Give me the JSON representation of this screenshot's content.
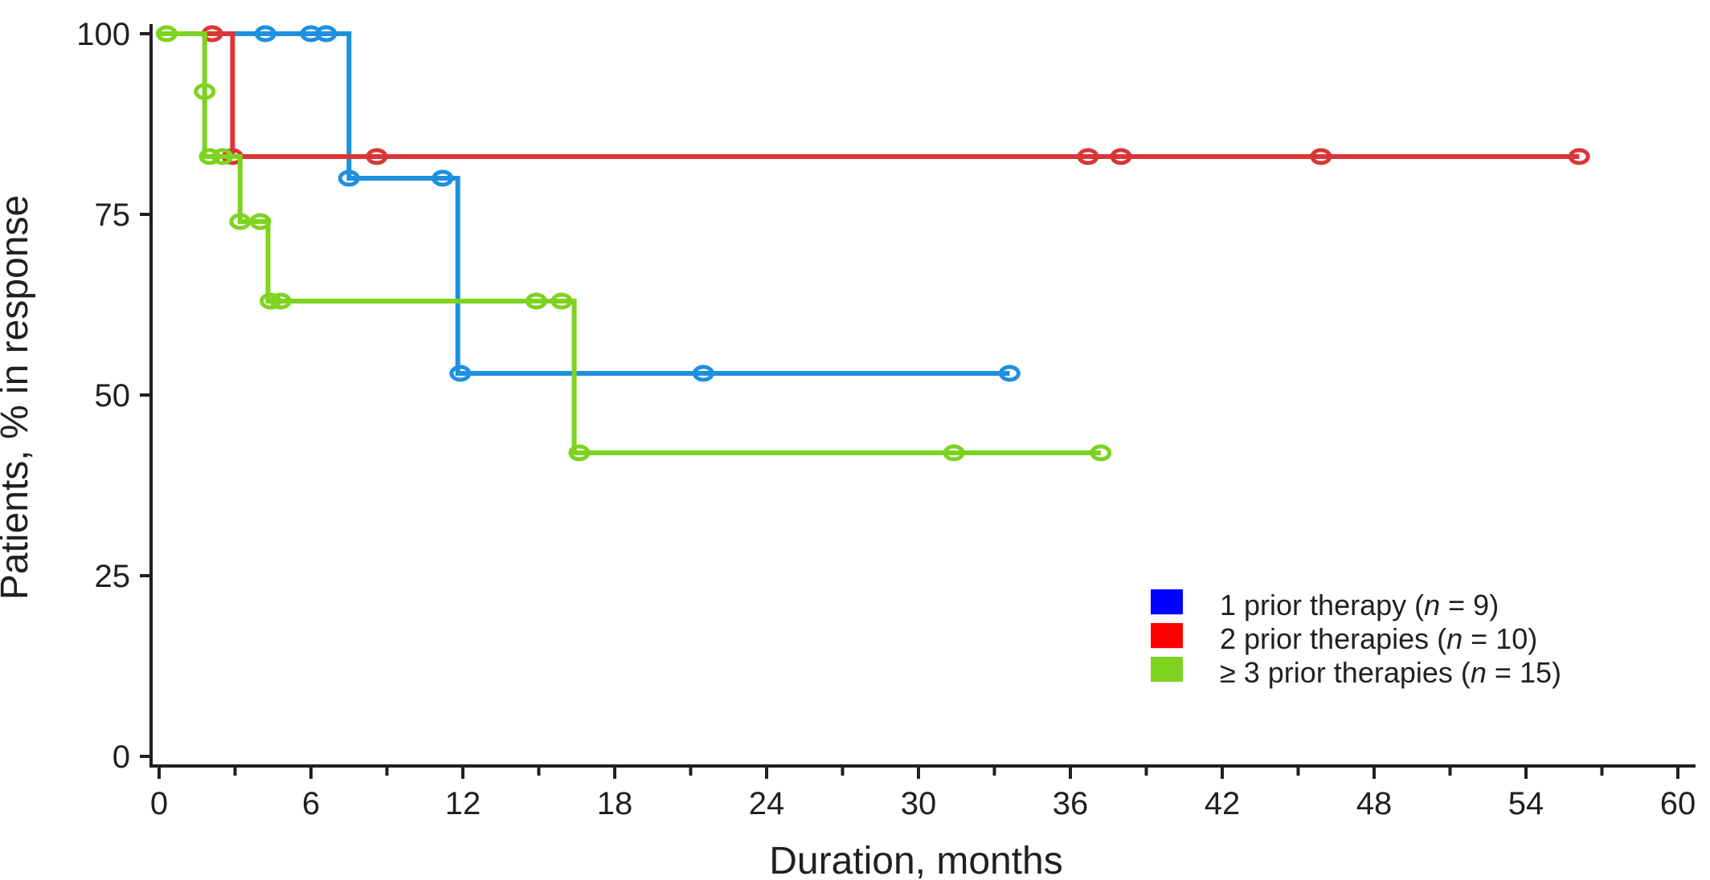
{
  "chart_data": {
    "type": "line",
    "subtype": "kaplan-meier step curves with censor markers",
    "title": "",
    "xlabel": "Duration, months",
    "ylabel": "Patients, % in response",
    "xlim": [
      0,
      60
    ],
    "ylim": [
      0,
      100
    ],
    "xticks": [
      0,
      6,
      12,
      18,
      24,
      30,
      36,
      42,
      48,
      54,
      60
    ],
    "xticks_minor": [
      3,
      9,
      15,
      21,
      27,
      33,
      39,
      45,
      51,
      57
    ],
    "yticks": [
      0,
      25,
      50,
      75,
      100
    ],
    "grid": false,
    "legend_position": "lower-right",
    "series": [
      {
        "label_main": "1 prior therapy (",
        "label_n": "n",
        "label_rest": " = 9)",
        "color": "#1e90e0",
        "legend_color": "#0000ff",
        "steps": [
          [
            0,
            100
          ],
          [
            7.5,
            100
          ],
          [
            7.5,
            80
          ],
          [
            11.8,
            80
          ],
          [
            11.8,
            53
          ],
          [
            33.6,
            53
          ]
        ],
        "censors": [
          [
            4.2,
            100
          ],
          [
            6.0,
            100
          ],
          [
            6.6,
            100
          ],
          [
            7.5,
            80
          ],
          [
            11.2,
            80
          ],
          [
            11.9,
            53
          ],
          [
            21.5,
            53
          ],
          [
            33.6,
            53
          ]
        ]
      },
      {
        "label_main": "2 prior therapies (",
        "label_n": "n",
        "label_rest": " = 10)",
        "color": "#d93636",
        "legend_color": "#ff0000",
        "steps": [
          [
            0,
            100
          ],
          [
            2.9,
            100
          ],
          [
            2.9,
            83
          ],
          [
            56.1,
            83
          ]
        ],
        "censors": [
          [
            2.1,
            100
          ],
          [
            2.9,
            83
          ],
          [
            8.6,
            83
          ],
          [
            36.7,
            83
          ],
          [
            38.0,
            83
          ],
          [
            45.9,
            83
          ],
          [
            56.1,
            83
          ]
        ]
      },
      {
        "label_main": "≥ 3 prior therapies (",
        "label_n": "n",
        "label_rest": " = 15)",
        "color": "#7ed321",
        "legend_color": "#7ed321",
        "steps": [
          [
            0,
            100
          ],
          [
            1.8,
            100
          ],
          [
            1.8,
            83
          ],
          [
            3.2,
            83
          ],
          [
            3.2,
            74
          ],
          [
            4.3,
            74
          ],
          [
            4.3,
            63
          ],
          [
            16.4,
            63
          ],
          [
            16.4,
            42
          ],
          [
            37.2,
            42
          ]
        ],
        "censors": [
          [
            0.3,
            100
          ],
          [
            1.8,
            92
          ],
          [
            2.0,
            83
          ],
          [
            2.5,
            83
          ],
          [
            3.2,
            74
          ],
          [
            4.0,
            74
          ],
          [
            4.4,
            63
          ],
          [
            4.8,
            63
          ],
          [
            14.9,
            63
          ],
          [
            15.9,
            63
          ],
          [
            16.6,
            42
          ],
          [
            31.4,
            42
          ],
          [
            37.2,
            42
          ]
        ]
      }
    ]
  }
}
